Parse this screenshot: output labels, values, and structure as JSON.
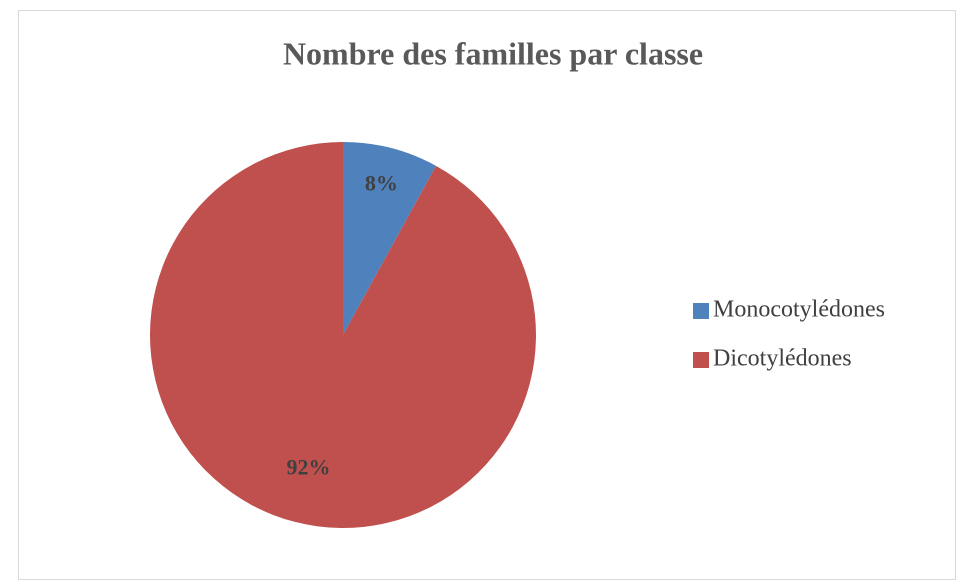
{
  "chart_data": {
    "type": "pie",
    "title": "Nombre des familles par classe",
    "categories": [
      "Monocotylédones",
      "Dicotylédones"
    ],
    "values": [
      8,
      92
    ],
    "value_labels": [
      "8%",
      "92%"
    ],
    "colors": [
      "#4f81bd",
      "#c0504d"
    ],
    "legend": "right"
  }
}
